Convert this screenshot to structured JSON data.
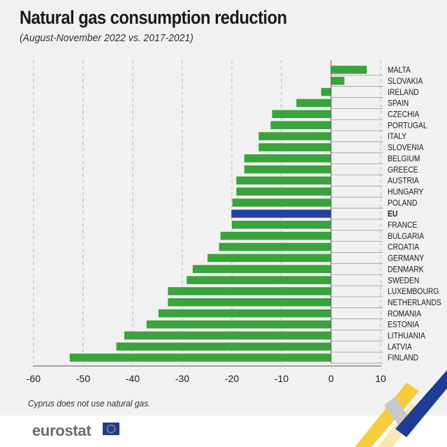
{
  "header": {
    "title": "Natural gas consumption reduction",
    "subtitle": "(August-November 2022 vs. 2017-2021)"
  },
  "footnote": "Cyprus does not use natural gas.",
  "brand": {
    "name": "eurostat"
  },
  "colors": {
    "bar": "#3aa33c",
    "highlight": "#2440a3",
    "grid": "#b8b8b8",
    "deco_yellow": "#f7c51e",
    "deco_blue": "#1f3c94"
  },
  "chart_data": {
    "type": "bar",
    "orientation": "horizontal",
    "categories": [
      "MALTA",
      "SLOVAKIA",
      "IRELAND",
      "SPAIN",
      "CZECHIA",
      "PORTUGAL",
      "ITALY",
      "SLOVENIA",
      "BELGIUM",
      "GREECE",
      "AUSTRIA",
      "HUNGARY",
      "POLAND",
      "EU",
      "FRANCE",
      "BULGARIA",
      "CROATIA",
      "GERMANY",
      "DENMARK",
      "SWEDEN",
      "LUXEMBOURG",
      "NETHERLANDS",
      "ROMANIA",
      "ESTONIA",
      "LITHUANIA",
      "LATVIA",
      "FINLAND"
    ],
    "values": [
      7.2,
      2.7,
      -2.0,
      -7.0,
      -11.9,
      -12.2,
      -14.6,
      -14.6,
      -17.5,
      -17.5,
      -19.1,
      -19.1,
      -19.9,
      -20.1,
      -20.0,
      -22.3,
      -22.6,
      -24.9,
      -27.9,
      -29.1,
      -32.9,
      -32.9,
      -34.8,
      -37.2,
      -41.7,
      -43.3,
      -52.7
    ],
    "highlight": [
      "EU"
    ],
    "xlim": [
      -60,
      10
    ],
    "xticks": [
      -60,
      -50,
      -40,
      -30,
      -20,
      -10,
      0,
      10
    ],
    "grid": "vertical dashed"
  }
}
